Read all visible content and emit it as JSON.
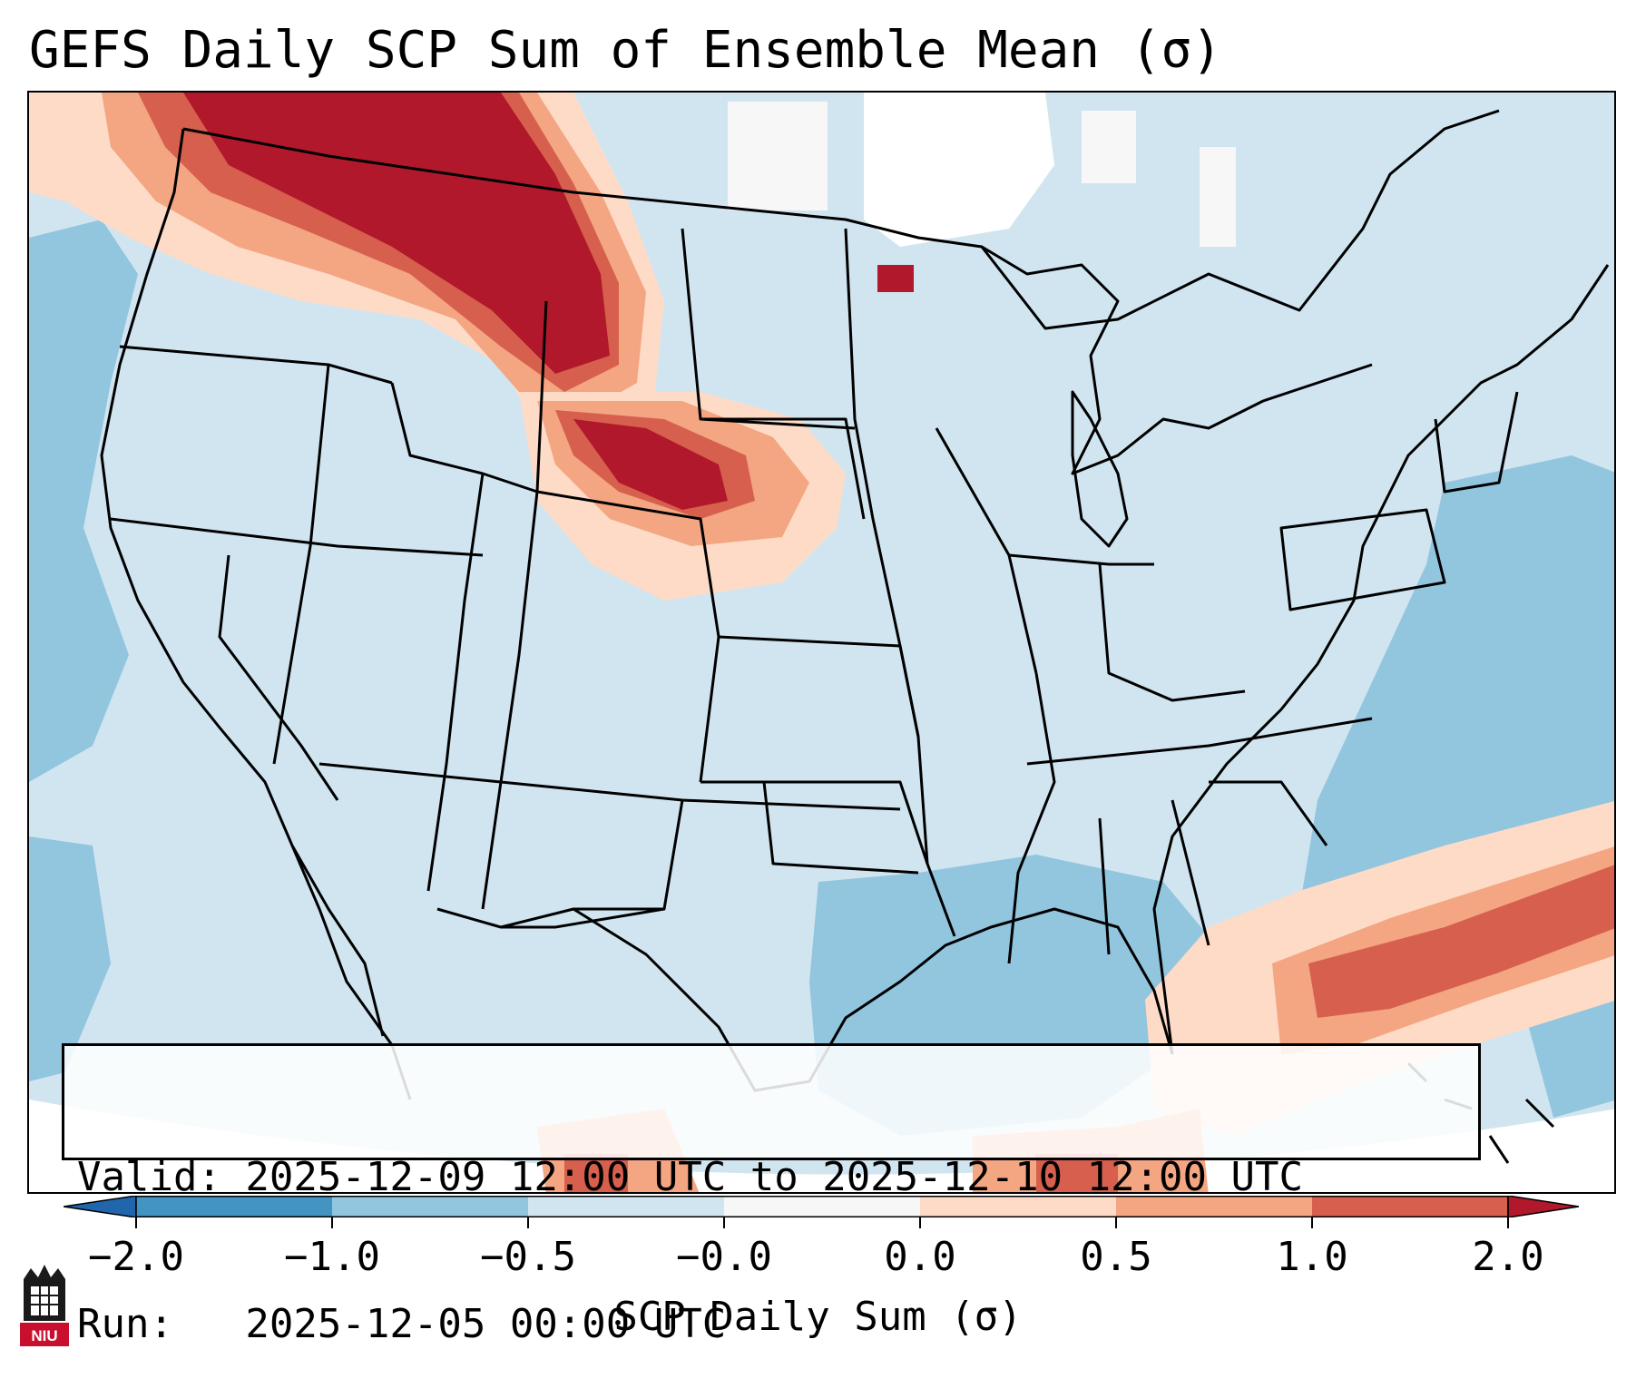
{
  "title": "GEFS Daily SCP Sum of Ensemble Mean (σ)",
  "info": {
    "valid_line": "Valid: 2025-12-09 12:00 UTC to 2025-12-10 12:00 UTC",
    "run_line": "Run:   2025-12-05 00:00 UTC"
  },
  "colorbar": {
    "title": "SCP Daily Sum (σ)",
    "ticks": [
      "−2.0",
      "−1.0",
      "−0.5",
      "−0.0",
      "0.0",
      "0.5",
      "1.0",
      "2.0"
    ],
    "colors": [
      "#4393c3",
      "#92c5de",
      "#d1e5f0",
      "#f7f7f7",
      "#fddbc7",
      "#f4a582",
      "#d6604d",
      "#b2182b"
    ],
    "extend": "both"
  },
  "logo": {
    "text": "NIU",
    "color": "#c8102e"
  },
  "map": {
    "projection": "Lambert conformal, CONUS",
    "field": "SCP daily sum anomaly (σ)",
    "regions": [
      {
        "name": "Pacific Northwest / Northern Rockies",
        "category": "2.0"
      },
      {
        "name": "Northern Plains (Dakotas, Nebraska)",
        "category": "1.0"
      },
      {
        "name": "Minnesota",
        "category": "2.0"
      },
      {
        "name": "Bahamas / Western Atlantic",
        "category": "1.0"
      },
      {
        "name": "Gulf of Mexico",
        "category": "−1.0"
      },
      {
        "name": "Western Atlantic",
        "category": "−1.0"
      },
      {
        "name": "Eastern Pacific",
        "category": "−1.0"
      },
      {
        "name": "Northern Great Lakes / Canada",
        "category": "−0.0"
      },
      {
        "name": "Continental background",
        "category": "−0.5"
      }
    ]
  }
}
